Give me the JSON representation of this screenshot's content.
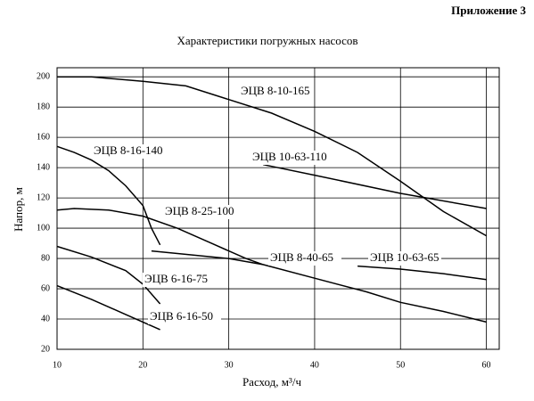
{
  "header": "Приложение 3",
  "chart_data": {
    "type": "line",
    "title": "Характеристики погружных насосов",
    "x_label": "Расход, м³/ч",
    "y_label": "Напор, м",
    "xlim": [
      10,
      61.5
    ],
    "ylim": [
      20,
      206
    ],
    "xticks": [
      10,
      20,
      30,
      40,
      50,
      60
    ],
    "yticks": [
      20,
      40,
      60,
      80,
      100,
      120,
      140,
      160,
      180,
      200
    ],
    "grid": true,
    "series": [
      {
        "name": "ЭЦВ 8-10-165",
        "color": "#000000",
        "x": [
          10,
          14,
          20,
          25,
          30,
          35,
          40,
          45,
          50,
          55,
          60
        ],
        "values": [
          200,
          200,
          197,
          194,
          185,
          176,
          164,
          150,
          131,
          111,
          95
        ]
      },
      {
        "name": "ЭЦВ 10-63-110",
        "color": "#000000",
        "x": [
          34,
          40,
          50,
          60
        ],
        "values": [
          142,
          135,
          123,
          113
        ]
      },
      {
        "name": "ЭЦВ 8-16-140",
        "color": "#000000",
        "x": [
          10,
          12,
          14,
          16,
          18,
          20,
          21,
          22
        ],
        "values": [
          154,
          150,
          145,
          138,
          128,
          115,
          100,
          89
        ]
      },
      {
        "name": "ЭЦВ 8-25-100",
        "color": "#000000",
        "x": [
          10,
          12,
          16,
          20,
          24,
          28,
          32,
          34
        ],
        "values": [
          112,
          113,
          112,
          108,
          100,
          90,
          80,
          76
        ]
      },
      {
        "name": "ЭЦВ 8-40-65",
        "color": "#000000",
        "x": [
          21,
          30,
          34,
          40,
          46,
          50,
          55,
          60
        ],
        "values": [
          85,
          80,
          76,
          67,
          58,
          51,
          45,
          38
        ]
      },
      {
        "name": "ЭЦВ 10-63-65",
        "color": "#000000",
        "x": [
          45,
          50,
          55,
          60
        ],
        "values": [
          75,
          73,
          70,
          66
        ]
      },
      {
        "name": "ЭЦВ 6-16-75",
        "color": "#000000",
        "x": [
          10,
          14,
          18,
          20,
          22
        ],
        "values": [
          88,
          81,
          72,
          63,
          50
        ]
      },
      {
        "name": "ЭЦВ 6-16-50",
        "color": "#000000",
        "x": [
          10,
          14,
          18,
          20,
          22
        ],
        "values": [
          62,
          53,
          43,
          38,
          33
        ]
      }
    ]
  }
}
